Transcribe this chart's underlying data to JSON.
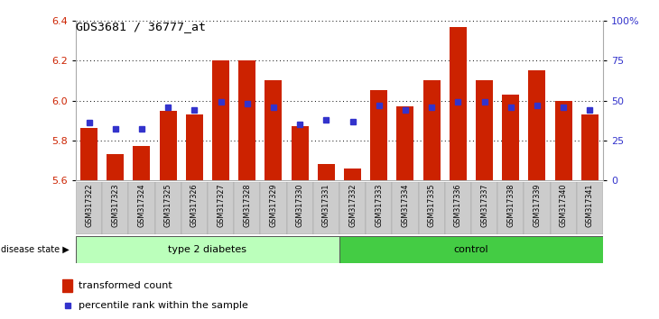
{
  "title": "GDS3681 / 36777_at",
  "samples": [
    "GSM317322",
    "GSM317323",
    "GSM317324",
    "GSM317325",
    "GSM317326",
    "GSM317327",
    "GSM317328",
    "GSM317329",
    "GSM317330",
    "GSM317331",
    "GSM317332",
    "GSM317333",
    "GSM317334",
    "GSM317335",
    "GSM317336",
    "GSM317337",
    "GSM317338",
    "GSM317339",
    "GSM317340",
    "GSM317341"
  ],
  "transformed_count": [
    5.86,
    5.73,
    5.77,
    5.95,
    5.93,
    6.2,
    6.2,
    6.1,
    5.87,
    5.68,
    5.66,
    6.05,
    5.97,
    6.1,
    6.37,
    6.1,
    6.03,
    6.15,
    6.0,
    5.93
  ],
  "percentile_rank": [
    36,
    32,
    32,
    46,
    44,
    49,
    48,
    46,
    35,
    38,
    37,
    47,
    44,
    46,
    49,
    49,
    46,
    47,
    46,
    44
  ],
  "ymin": 5.6,
  "ymax": 6.4,
  "yticks": [
    5.6,
    5.8,
    6.0,
    6.2,
    6.4
  ],
  "right_yticks": [
    0,
    25,
    50,
    75,
    100
  ],
  "type2_diabetes_count": 10,
  "control_count": 10,
  "bar_color": "#cc2200",
  "dot_color": "#3333cc",
  "type2_bg": "#bbffbb",
  "control_bg": "#44cc44",
  "label_bg": "#cccccc",
  "legend_red_label": "transformed count",
  "legend_blue_label": "percentile rank within the sample",
  "disease_state_label": "disease state",
  "type2_label": "type 2 diabetes",
  "control_label": "control"
}
